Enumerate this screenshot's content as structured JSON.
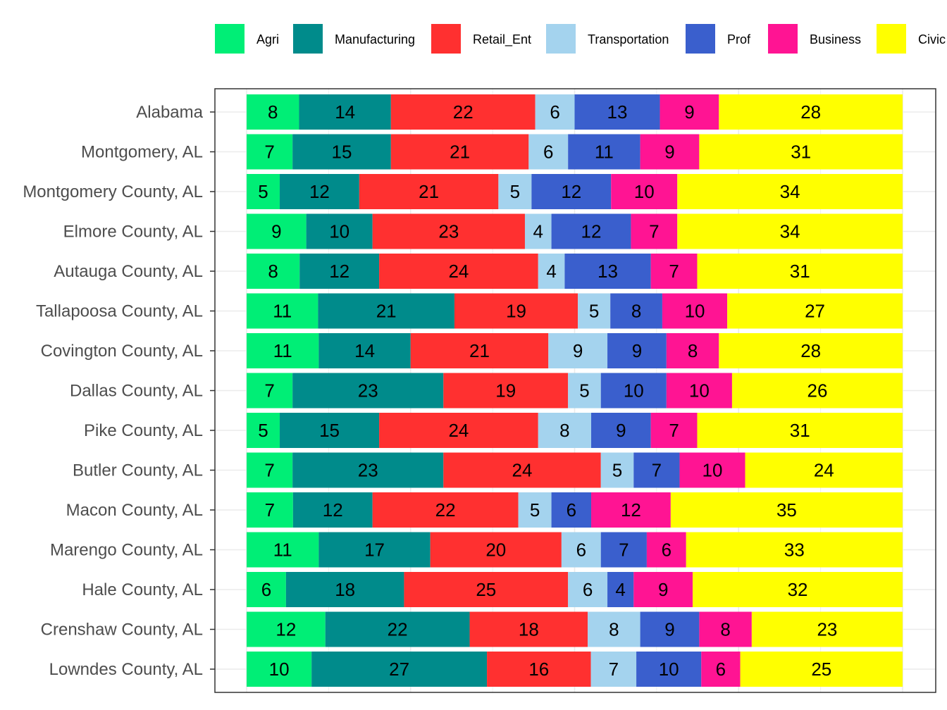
{
  "chart_data": {
    "type": "bar",
    "orientation": "horizontal",
    "stacked": "percent",
    "title": "",
    "xlabel": "",
    "ylabel": "",
    "grid": true,
    "legend_position": "top",
    "categories": [
      "Alabama",
      "Montgomery, AL",
      "Montgomery County, AL",
      "Elmore County, AL",
      "Autauga County, AL",
      "Tallapoosa County, AL",
      "Covington County, AL",
      "Dallas County, AL",
      "Pike County, AL",
      "Butler County, AL",
      "Macon County, AL",
      "Marengo County, AL",
      "Hale County, AL",
      "Crenshaw County, AL",
      "Lowndes County, AL"
    ],
    "series": [
      {
        "name": "Agri",
        "color": "#00EE76",
        "values": [
          8,
          7,
          5,
          9,
          8,
          11,
          11,
          7,
          5,
          7,
          7,
          11,
          6,
          12,
          10
        ]
      },
      {
        "name": "Manufacturing",
        "color": "#008B8B",
        "values": [
          14,
          15,
          12,
          10,
          12,
          21,
          14,
          23,
          15,
          23,
          12,
          17,
          18,
          22,
          27
        ]
      },
      {
        "name": "Retail_Ent",
        "color": "#FF3030",
        "values": [
          22,
          21,
          21,
          23,
          24,
          19,
          21,
          19,
          24,
          24,
          22,
          20,
          25,
          18,
          16
        ]
      },
      {
        "name": "Transportation",
        "color": "#A4D3EE",
        "values": [
          6,
          6,
          5,
          4,
          4,
          5,
          9,
          5,
          8,
          5,
          5,
          6,
          6,
          8,
          7
        ]
      },
      {
        "name": "Prof",
        "color": "#3A5FCD",
        "values": [
          13,
          11,
          12,
          12,
          13,
          8,
          9,
          10,
          9,
          7,
          6,
          7,
          4,
          9,
          10
        ]
      },
      {
        "name": "Business",
        "color": "#FF1493",
        "values": [
          9,
          9,
          10,
          7,
          7,
          10,
          8,
          10,
          7,
          10,
          12,
          6,
          9,
          8,
          6
        ]
      },
      {
        "name": "Civic",
        "color": "#FFFF00",
        "values": [
          28,
          31,
          34,
          34,
          31,
          27,
          28,
          26,
          31,
          24,
          35,
          33,
          32,
          23,
          25
        ]
      }
    ],
    "legend_labels": [
      "Agri",
      "Manufacturing",
      "Retail_Ent",
      "Transportation",
      "Prof",
      "Business",
      "Civic"
    ]
  }
}
